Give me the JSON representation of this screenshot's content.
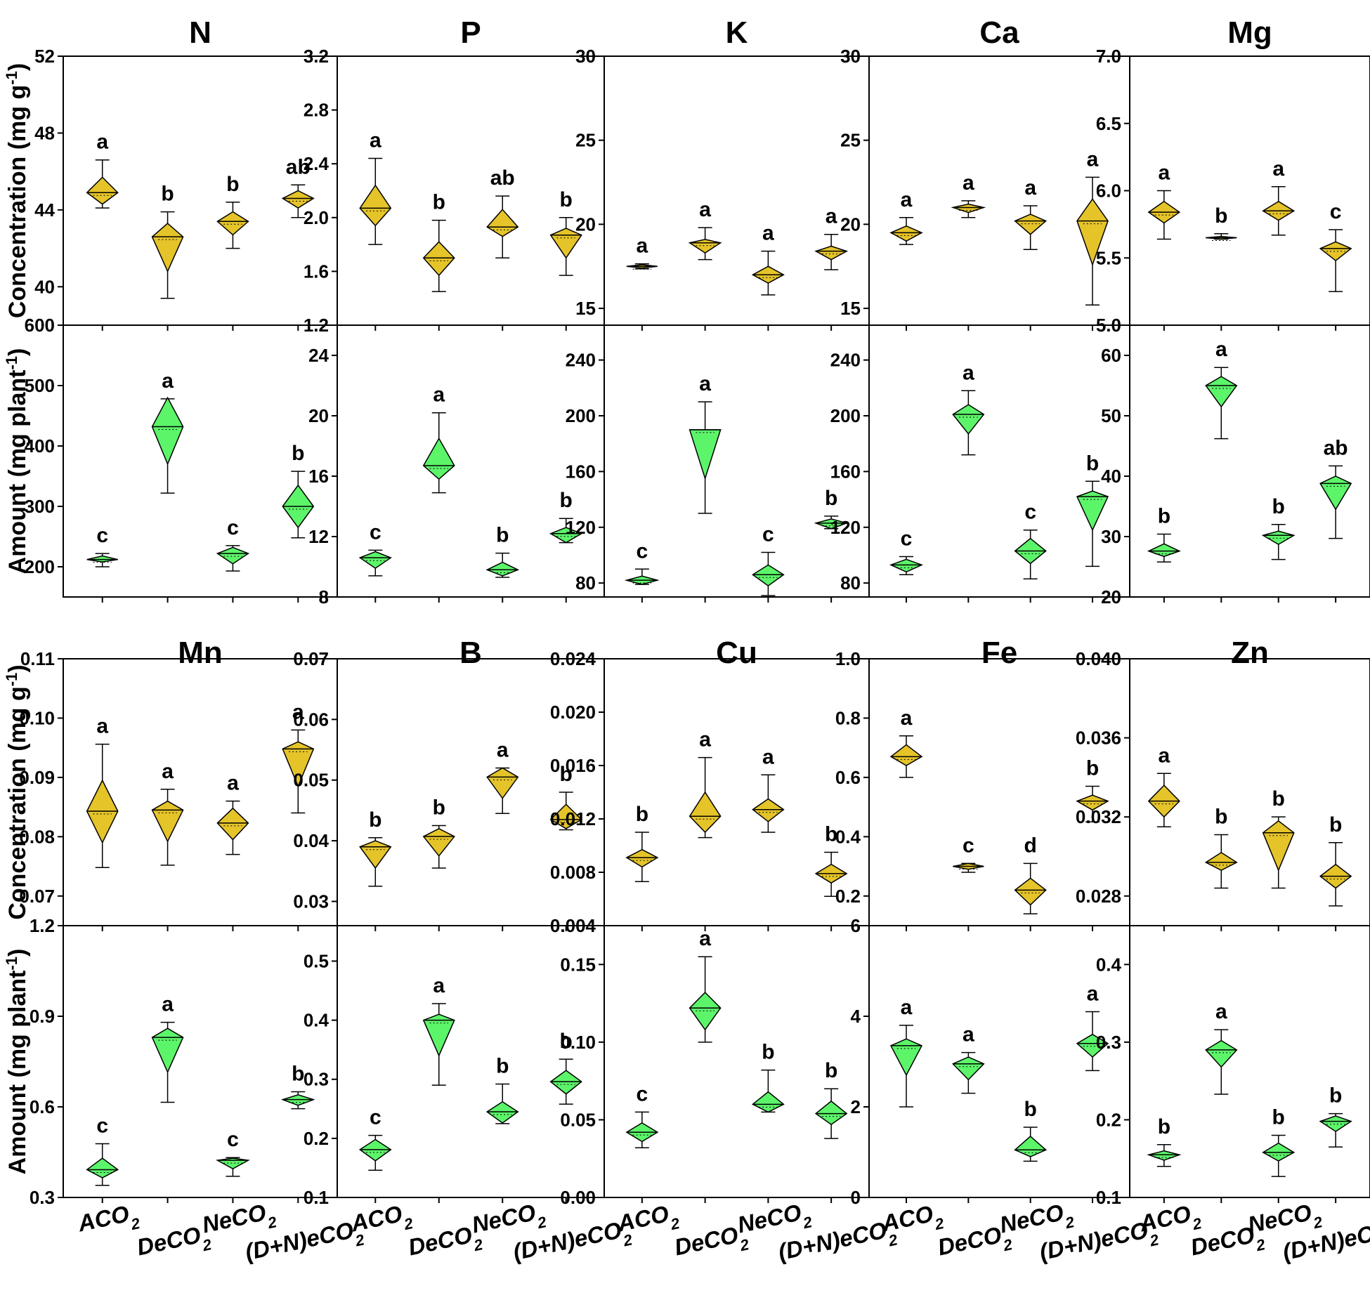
{
  "colors": {
    "concentration": "#e5c42a",
    "amount": "#5cf56a",
    "line": "#000000"
  },
  "y_labels": {
    "concentration": "Concentration (mg g",
    "concentration_sup": "-1",
    "concentration_close": ")",
    "amount": "Amount (mg plant",
    "amount_sup": "-1",
    "amount_close": ")"
  },
  "categories": [
    {
      "base": "ACO",
      "sub": "2"
    },
    {
      "base": "DeCO",
      "sub": "2"
    },
    {
      "base": "NeCO",
      "sub": "2"
    },
    {
      "base": "(D+N)eCO",
      "sub": "2"
    }
  ],
  "chart_data": [
    {
      "type": "violin",
      "element": "N",
      "concentration": {
        "ylim": [
          38,
          52
        ],
        "ticks": [
          "40",
          "44",
          "48",
          "52"
        ],
        "box": [
          [
            44.3,
            45.7
          ],
          [
            40.8,
            43.3
          ],
          [
            42.7,
            43.9
          ],
          [
            44.1,
            45.0
          ]
        ],
        "whisker": [
          [
            44.1,
            46.6
          ],
          [
            39.4,
            43.9
          ],
          [
            42.0,
            44.4
          ],
          [
            43.6,
            45.3
          ]
        ],
        "median": [
          44.9,
          42.6,
          43.4,
          44.6
        ],
        "letters": [
          "a",
          "b",
          "b",
          "ab"
        ]
      },
      "amount": {
        "ylim": [
          150,
          600
        ],
        "ticks": [
          "200",
          "300",
          "400",
          "500",
          "600"
        ],
        "box": [
          [
            208,
            218
          ],
          [
            370,
            480
          ],
          [
            205,
            232
          ],
          [
            265,
            335
          ]
        ],
        "whisker": [
          [
            200,
            222
          ],
          [
            322,
            478
          ],
          [
            193,
            235
          ],
          [
            248,
            358
          ]
        ],
        "median": [
          212,
          432,
          222,
          300
        ],
        "letters": [
          "c",
          "a",
          "c",
          "b"
        ]
      }
    },
    {
      "type": "violin",
      "element": "P",
      "concentration": {
        "ylim": [
          1.2,
          3.2
        ],
        "ticks": [
          "1.2",
          "1.6",
          "2.0",
          "2.4",
          "2.8",
          "3.2"
        ],
        "box": [
          [
            1.94,
            2.24
          ],
          [
            1.57,
            1.82
          ],
          [
            1.86,
            2.06
          ],
          [
            1.7,
            1.92
          ]
        ],
        "whisker": [
          [
            1.8,
            2.44
          ],
          [
            1.45,
            1.98
          ],
          [
            1.7,
            2.16
          ],
          [
            1.57,
            2.0
          ]
        ],
        "median": [
          2.07,
          1.7,
          1.93,
          1.87
        ],
        "letters": [
          "a",
          "b",
          "ab",
          "b"
        ]
      },
      "amount": {
        "ylim": [
          8,
          26
        ],
        "ticks": [
          "8",
          "12",
          "16",
          "20",
          "24"
        ],
        "box": [
          [
            9.9,
            11.0
          ],
          [
            15.8,
            18.5
          ],
          [
            9.4,
            10.3
          ],
          [
            11.6,
            12.6
          ]
        ],
        "whisker": [
          [
            9.4,
            11.1
          ],
          [
            14.9,
            20.2
          ],
          [
            9.3,
            10.9
          ],
          [
            11.6,
            13.2
          ]
        ],
        "median": [
          10.6,
          16.7,
          9.8,
          12.2
        ],
        "letters": [
          "c",
          "a",
          "b",
          "b"
        ]
      }
    },
    {
      "type": "violin",
      "element": "K",
      "concentration": {
        "ylim": [
          14,
          30
        ],
        "ticks": [
          "15",
          "20",
          "25",
          "30"
        ],
        "box": [
          [
            17.4,
            17.6
          ],
          [
            18.3,
            19.1
          ],
          [
            16.5,
            17.5
          ],
          [
            17.9,
            18.7
          ]
        ],
        "whisker": [
          [
            17.35,
            17.65
          ],
          [
            17.9,
            19.8
          ],
          [
            15.8,
            18.4
          ],
          [
            17.3,
            19.4
          ]
        ],
        "median": [
          17.5,
          18.9,
          17.0,
          18.4
        ],
        "letters": [
          "a",
          "a",
          "a",
          "a"
        ]
      },
      "amount": {
        "ylim": [
          70,
          265
        ],
        "ticks": [
          "80",
          "120",
          "160",
          "200",
          "240"
        ],
        "box": [
          [
            79,
            85
          ],
          [
            155,
            190
          ],
          [
            78,
            93
          ],
          [
            119,
            126
          ]
        ],
        "whisker": [
          [
            79,
            90
          ],
          [
            130,
            210
          ],
          [
            71,
            102
          ],
          [
            119,
            128
          ]
        ],
        "median": [
          82,
          190,
          86,
          123
        ],
        "letters": [
          "c",
          "a",
          "c",
          "b"
        ]
      }
    },
    {
      "type": "violin",
      "element": "Ca",
      "concentration": {
        "ylim": [
          14,
          30
        ],
        "ticks": [
          "15",
          "20",
          "25",
          "30"
        ],
        "box": [
          [
            19.0,
            19.9
          ],
          [
            20.7,
            21.2
          ],
          [
            19.4,
            20.6
          ],
          [
            17.6,
            21.5
          ]
        ],
        "whisker": [
          [
            18.8,
            20.4
          ],
          [
            20.4,
            21.4
          ],
          [
            18.5,
            21.1
          ],
          [
            15.2,
            22.8
          ]
        ],
        "median": [
          19.5,
          21.0,
          20.2,
          20.2
        ],
        "letters": [
          "a",
          "a",
          "a",
          "a"
        ]
      },
      "amount": {
        "ylim": [
          70,
          265
        ],
        "ticks": [
          "80",
          "120",
          "160",
          "200",
          "240"
        ],
        "box": [
          [
            88,
            97
          ],
          [
            187,
            208
          ],
          [
            94,
            112
          ],
          [
            118,
            146
          ]
        ],
        "whisker": [
          [
            86,
            99
          ],
          [
            172,
            218
          ],
          [
            83,
            118
          ],
          [
            92,
            153
          ]
        ],
        "median": [
          93,
          201,
          103,
          142
        ],
        "letters": [
          "c",
          "a",
          "c",
          "b"
        ]
      }
    },
    {
      "type": "violin",
      "element": "Mg",
      "concentration": {
        "ylim": [
          5.0,
          7.0
        ],
        "ticks": [
          "5.0",
          "5.5",
          "6.0",
          "6.5",
          "7.0"
        ],
        "box": [
          [
            5.76,
            5.92
          ],
          [
            5.64,
            5.66
          ],
          [
            5.78,
            5.92
          ],
          [
            5.48,
            5.62
          ]
        ],
        "whisker": [
          [
            5.64,
            6.0
          ],
          [
            5.64,
            5.68
          ],
          [
            5.67,
            6.03
          ],
          [
            5.25,
            5.71
          ]
        ],
        "median": [
          5.84,
          5.65,
          5.85,
          5.57
        ],
        "letters": [
          "a",
          "b",
          "a",
          "c"
        ]
      },
      "amount": {
        "ylim": [
          20,
          65
        ],
        "ticks": [
          "20",
          "30",
          "40",
          "50",
          "60"
        ],
        "box": [
          [
            26.7,
            28.8
          ],
          [
            51.5,
            56.5
          ],
          [
            28.7,
            30.9
          ],
          [
            34.5,
            40.0
          ]
        ],
        "whisker": [
          [
            25.8,
            30.4
          ],
          [
            46.2,
            58.0
          ],
          [
            26.2,
            32.0
          ],
          [
            29.7,
            41.7
          ]
        ],
        "median": [
          27.6,
          55.0,
          30.2,
          38.8
        ],
        "letters": [
          "b",
          "a",
          "b",
          "ab"
        ]
      }
    },
    {
      "type": "violin",
      "element": "Mn",
      "concentration": {
        "ylim": [
          0.065,
          0.11
        ],
        "ticks": [
          "0.07",
          "0.08",
          "0.09",
          "0.10",
          "0.11"
        ],
        "box": [
          [
            0.079,
            0.0895
          ],
          [
            0.0792,
            0.086
          ],
          [
            0.0795,
            0.0848
          ],
          [
            0.0885,
            0.096
          ]
        ],
        "whisker": [
          [
            0.0748,
            0.0956
          ],
          [
            0.0752,
            0.088
          ],
          [
            0.077,
            0.086
          ],
          [
            0.084,
            0.098
          ]
        ],
        "median": [
          0.0843,
          0.0845,
          0.0823,
          0.0948
        ],
        "letters": [
          "a",
          "a",
          "a",
          "a"
        ]
      },
      "amount": {
        "ylim": [
          0.3,
          1.2
        ],
        "ticks": [
          "0.3",
          "0.6",
          "0.9",
          "1.2"
        ],
        "box": [
          [
            0.365,
            0.43
          ],
          [
            0.715,
            0.86
          ],
          [
            0.395,
            0.43
          ],
          [
            0.605,
            0.64
          ]
        ],
        "whisker": [
          [
            0.34,
            0.478
          ],
          [
            0.615,
            0.88
          ],
          [
            0.37,
            0.432
          ],
          [
            0.594,
            0.65
          ]
        ],
        "median": [
          0.392,
          0.83,
          0.423,
          0.624
        ],
        "letters": [
          "c",
          "a",
          "c",
          "b"
        ]
      }
    },
    {
      "type": "violin",
      "element": "B",
      "concentration": {
        "ylim": [
          0.026,
          0.07
        ],
        "ticks": [
          "0.03",
          "0.04",
          "0.05",
          "0.06",
          "0.07"
        ],
        "box": [
          [
            0.0355,
            0.04
          ],
          [
            0.0375,
            0.042
          ],
          [
            0.047,
            0.052
          ],
          [
            0.042,
            0.046
          ]
        ],
        "whisker": [
          [
            0.0325,
            0.0405
          ],
          [
            0.0355,
            0.0425
          ],
          [
            0.0445,
            0.052
          ],
          [
            0.0418,
            0.048
          ]
        ],
        "median": [
          0.039,
          0.0407,
          0.0505,
          0.0435
        ],
        "letters": [
          "b",
          "b",
          "a",
          "b"
        ]
      },
      "amount": {
        "ylim": [
          0.1,
          0.56
        ],
        "ticks": [
          "0.1",
          "0.2",
          "0.3",
          "0.4",
          "0.5"
        ],
        "box": [
          [
            0.162,
            0.198
          ],
          [
            0.34,
            0.41
          ],
          [
            0.226,
            0.262
          ],
          [
            0.275,
            0.315
          ]
        ],
        "whisker": [
          [
            0.146,
            0.205
          ],
          [
            0.29,
            0.428
          ],
          [
            0.225,
            0.292
          ],
          [
            0.258,
            0.334
          ]
        ],
        "median": [
          0.181,
          0.4,
          0.245,
          0.296
        ],
        "letters": [
          "c",
          "a",
          "b",
          "b"
        ]
      }
    },
    {
      "type": "violin",
      "element": "Cu",
      "concentration": {
        "ylim": [
          0.004,
          0.024
        ],
        "ticks": [
          "0.004",
          "0.008",
          "0.012",
          "0.016",
          "0.020",
          "0.024"
        ],
        "box": [
          [
            0.0084,
            0.0097
          ],
          [
            0.011,
            0.014
          ],
          [
            0.0118,
            0.0135
          ],
          [
            0.0072,
            0.0086
          ]
        ],
        "whisker": [
          [
            0.0073,
            0.011
          ],
          [
            0.0106,
            0.0166
          ],
          [
            0.011,
            0.0153
          ],
          [
            0.0062,
            0.0095
          ]
        ],
        "median": [
          0.0091,
          0.0122,
          0.0127,
          0.0079
        ],
        "letters": [
          "b",
          "a",
          "a",
          "b"
        ]
      },
      "amount": {
        "ylim": [
          0.0,
          0.175
        ],
        "ticks": [
          "0.00",
          "0.05",
          "0.10",
          "0.15"
        ],
        "box": [
          [
            0.036,
            0.048
          ],
          [
            0.108,
            0.132
          ],
          [
            0.055,
            0.068
          ],
          [
            0.047,
            0.062
          ]
        ],
        "whisker": [
          [
            0.032,
            0.055
          ],
          [
            0.1,
            0.155
          ],
          [
            0.055,
            0.082
          ],
          [
            0.038,
            0.07
          ]
        ],
        "median": [
          0.042,
          0.122,
          0.06,
          0.054
        ],
        "letters": [
          "c",
          "a",
          "b",
          "b"
        ]
      }
    },
    {
      "type": "violin",
      "element": "Fe",
      "concentration": {
        "ylim": [
          0.1,
          1.0
        ],
        "ticks": [
          "0.2",
          "0.4",
          "0.6",
          "0.8",
          "1.0"
        ],
        "box": [
          [
            0.64,
            0.71
          ],
          [
            0.29,
            0.31
          ],
          [
            0.17,
            0.26
          ],
          [
            0.49,
            0.54
          ]
        ],
        "whisker": [
          [
            0.6,
            0.74
          ],
          [
            0.28,
            0.31
          ],
          [
            0.14,
            0.31
          ],
          [
            0.45,
            0.57
          ]
        ],
        "median": [
          0.67,
          0.3,
          0.22,
          0.52
        ],
        "letters": [
          "a",
          "c",
          "d",
          "b"
        ]
      },
      "amount": {
        "ylim": [
          0,
          6
        ],
        "ticks": [
          "0",
          "2",
          "4",
          "6"
        ],
        "box": [
          [
            2.7,
            3.5
          ],
          [
            2.6,
            3.1
          ],
          [
            0.9,
            1.35
          ],
          [
            3.1,
            3.6
          ]
        ],
        "whisker": [
          [
            2.0,
            3.8
          ],
          [
            2.3,
            3.2
          ],
          [
            0.8,
            1.55
          ],
          [
            2.8,
            4.1
          ]
        ],
        "median": [
          3.35,
          2.95,
          1.05,
          3.4
        ],
        "letters": [
          "a",
          "a",
          "b",
          "a"
        ]
      }
    },
    {
      "type": "violin",
      "element": "Zn",
      "concentration": {
        "ylim": [
          0.0265,
          0.04
        ],
        "ticks": [
          "0.028",
          "0.032",
          "0.036",
          "0.040"
        ],
        "box": [
          [
            0.032,
            0.0336
          ],
          [
            0.0293,
            0.0302
          ],
          [
            0.0293,
            0.0318
          ],
          [
            0.0284,
            0.0296
          ]
        ],
        "whisker": [
          [
            0.0315,
            0.0342
          ],
          [
            0.0284,
            0.0311
          ],
          [
            0.0284,
            0.032
          ],
          [
            0.0275,
            0.0307
          ]
        ],
        "median": [
          0.0328,
          0.0297,
          0.0312,
          0.029
        ],
        "letters": [
          "a",
          "b",
          "b",
          "b"
        ]
      },
      "amount": {
        "ylim": [
          0.1,
          0.45
        ],
        "ticks": [
          "0.1",
          "0.2",
          "0.3",
          "0.4"
        ],
        "box": [
          [
            0.148,
            0.16
          ],
          [
            0.268,
            0.302
          ],
          [
            0.147,
            0.17
          ],
          [
            0.185,
            0.205
          ]
        ],
        "whisker": [
          [
            0.14,
            0.168
          ],
          [
            0.233,
            0.316
          ],
          [
            0.127,
            0.18
          ],
          [
            0.165,
            0.208
          ]
        ],
        "median": [
          0.155,
          0.29,
          0.158,
          0.198
        ],
        "letters": [
          "b",
          "a",
          "b",
          "b"
        ]
      }
    }
  ]
}
